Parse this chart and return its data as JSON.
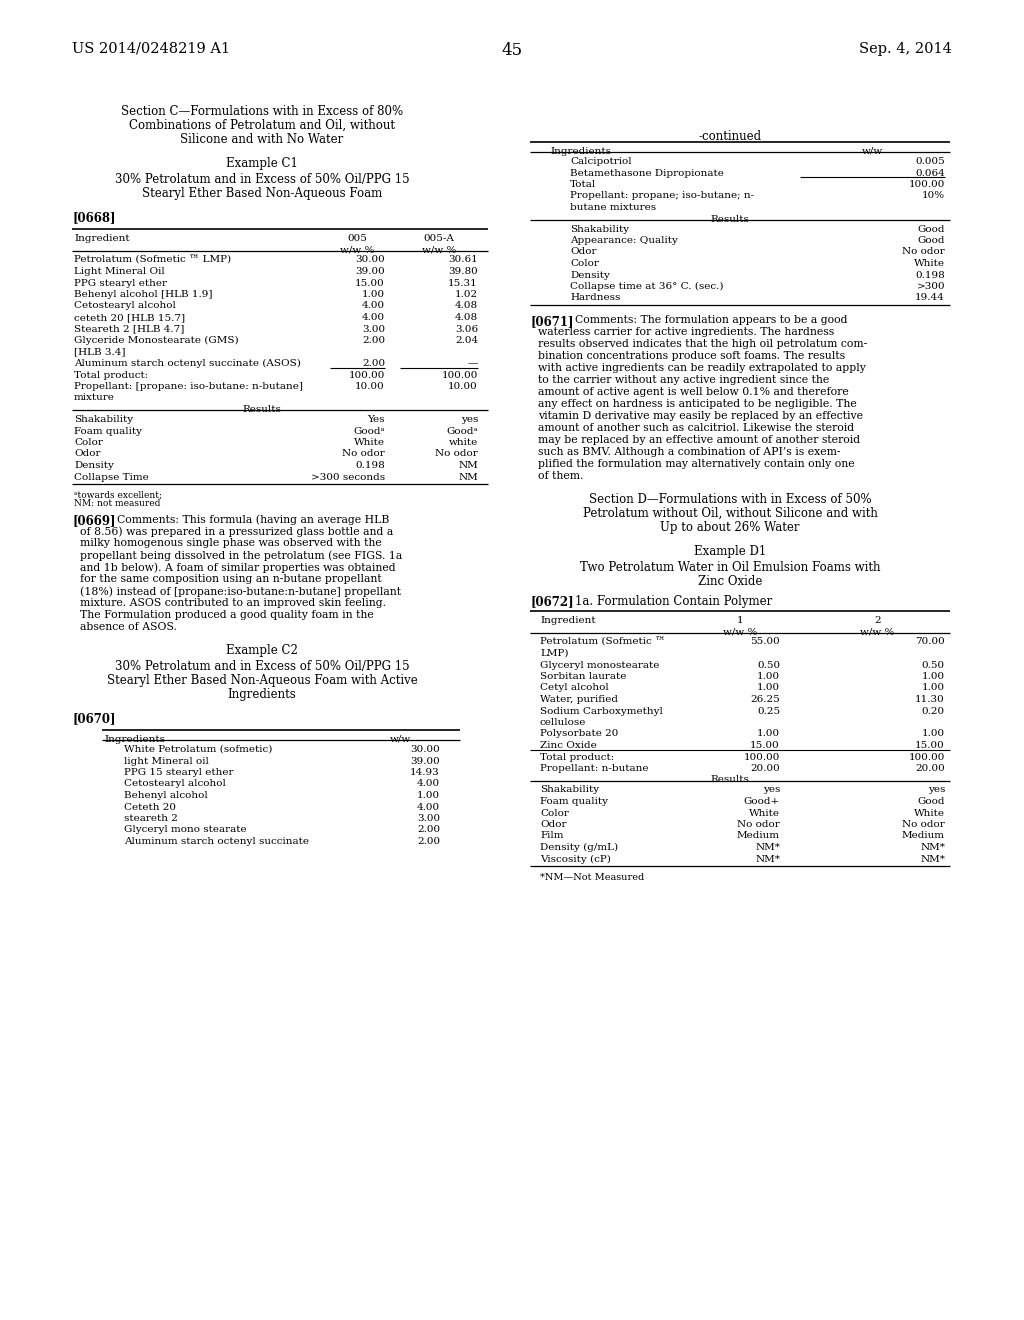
{
  "page_num": "45",
  "header_left": "US 2014/0248219 A1",
  "header_right": "Sep. 4, 2014",
  "bg_color": "#ffffff",
  "left_col": {
    "section_title": [
      "Section C—Formulations with in Excess of 80%",
      "Combinations of Petrolatum and Oil, without",
      "Silicone and with No Water"
    ],
    "example_c1_title": "Example C1",
    "example_c1_subtitle": [
      "30% Petrolatum and in Excess of 50% Oil/PPG 15",
      "Stearyl Ether Based Non-Aqueous Foam"
    ],
    "para_0668": "[0668]",
    "table1_rows": [
      [
        "Petrolatum (Sofmetic ™ LMP)",
        "30.00",
        "30.61"
      ],
      [
        "Light Mineral Oil",
        "39.00",
        "39.80"
      ],
      [
        "PPG stearyl ether",
        "15.00",
        "15.31"
      ],
      [
        "Behenyl alcohol [HLB 1.9]",
        "1.00",
        "1.02"
      ],
      [
        "Cetostearyl alcohol",
        "4.00",
        "4.08"
      ],
      [
        "ceteth 20 [HLB 15.7]",
        "4.00",
        "4.08"
      ],
      [
        "Steareth 2 [HLB 4.7]",
        "3.00",
        "3.06"
      ],
      [
        "Glyceride Monostearate (GMS)",
        "2.00",
        "2.04"
      ],
      [
        "[HLB 3.4]",
        "",
        ""
      ],
      [
        "Aluminum starch octenyl succinate (ASOS)",
        "2.00",
        "—"
      ]
    ],
    "table1_total": [
      [
        "Total product:",
        "100.00",
        "100.00"
      ],
      [
        "Propellant: [propane: iso-butane: n-butane]",
        "10.00",
        "10.00"
      ],
      [
        "mixture",
        "",
        ""
      ]
    ],
    "table1_results": [
      [
        "Shakability",
        "Yes",
        "yes"
      ],
      [
        "Foam quality",
        "Goodᵃ",
        "Goodᵃ"
      ],
      [
        "Color",
        "White",
        "white"
      ],
      [
        "Odor",
        "No odor",
        "No odor"
      ],
      [
        "Density",
        "0.198",
        "NM"
      ],
      [
        "Collapse Time",
        ">300 seconds",
        "NM"
      ]
    ],
    "footnote": [
      "ᵃtowards excellent;",
      "NM: not measured"
    ],
    "para_0669_tag": "[0669]",
    "para_0669_text": [
      "Comments: This formula (having an average HLB",
      "of 8.56) was prepared in a pressurized glass bottle and a",
      "milky homogenous single phase was observed with the",
      "propellant being dissolved in the petrolatum (see FIGS. 1a",
      "and 1b below). A foam of similar properties was obtained",
      "for the same composition using an n-butane propellant",
      "(18%) instead of [propane:iso-butane:n-butane] propellant",
      "mixture. ASOS contributed to an improved skin feeling.",
      "The Formulation produced a good quality foam in the",
      "absence of ASOS."
    ],
    "example_c2_title": "Example C2",
    "example_c2_subtitle": [
      "30% Petrolatum and in Excess of 50% Oil/PPG 15",
      "Stearyl Ether Based Non-Aqueous Foam with Active",
      "Ingredients"
    ],
    "para_0670": "[0670]",
    "table2_rows": [
      [
        "White Petrolatum (sofmetic)",
        "30.00"
      ],
      [
        "light Mineral oil",
        "39.00"
      ],
      [
        "PPG 15 stearyl ether",
        "14.93"
      ],
      [
        "Cetostearyl alcohol",
        "4.00"
      ],
      [
        "Behenyl alcohol",
        "1.00"
      ],
      [
        "Ceteth 20",
        "4.00"
      ],
      [
        "steareth 2",
        "3.00"
      ],
      [
        "Glyceryl mono stearate",
        "2.00"
      ],
      [
        "Aluminum starch octenyl succinate",
        "2.00"
      ]
    ]
  },
  "right_col": {
    "continued_label": "-continued",
    "table3_rows": [
      [
        "Calcipotriol",
        "0.005"
      ],
      [
        "Betamethasone Dipropionate",
        "0.064"
      ]
    ],
    "table3_total": [
      [
        "Total",
        "100.00"
      ],
      [
        "Propellant: propane; iso-butane; n-",
        "10%"
      ],
      [
        "butane mixtures",
        ""
      ]
    ],
    "table3_results": [
      [
        "Shakability",
        "Good"
      ],
      [
        "Appearance: Quality",
        "Good"
      ],
      [
        "Odor",
        "No odor"
      ],
      [
        "Color",
        "White"
      ],
      [
        "Density",
        "0.198"
      ],
      [
        "Collapse time at 36° C. (sec.)",
        ">300"
      ],
      [
        "Hardness",
        "19.44"
      ]
    ],
    "para_0671_tag": "[0671]",
    "para_0671_text": [
      "Comments: The formulation appears to be a good",
      "waterless carrier for active ingredients. The hardness",
      "results observed indicates that the high oil petrolatum com-",
      "bination concentrations produce soft foams. The results",
      "with active ingredients can be readily extrapolated to apply",
      "to the carrier without any active ingredient since the",
      "amount of active agent is well below 0.1% and therefore",
      "any effect on hardness is anticipated to be negligible. The",
      "vitamin D derivative may easily be replaced by an effective",
      "amount of another such as calcitriol. Likewise the steroid",
      "may be replaced by an effective amount of another steroid",
      "such as BMV. Although a combination of API’s is exem-",
      "plified the formulation may alternatively contain only one",
      "of them."
    ],
    "section_d_title": [
      "Section D—Formulations with in Excess of 50%",
      "Petrolatum without Oil, without Silicone and with",
      "Up to about 26% Water"
    ],
    "example_d1_title": "Example D1",
    "example_d1_subtitle": [
      "Two Petrolatum Water in Oil Emulsion Foams with",
      "Zinc Oxide"
    ],
    "para_0672_tag": "[0672]",
    "para_0672_label": "1a. Formulation Contain Polymer",
    "table4_rows": [
      [
        "Petrolatum (Sofmetic ™",
        "55.00",
        "70.00"
      ],
      [
        "LMP)",
        "",
        ""
      ],
      [
        "Glyceryl monostearate",
        "0.50",
        "0.50"
      ],
      [
        "Sorbitan laurate",
        "1.00",
        "1.00"
      ],
      [
        "Cetyl alcohol",
        "1.00",
        "1.00"
      ],
      [
        "Water, purified",
        "26.25",
        "11.30"
      ],
      [
        "Sodium Carboxymethyl",
        "0.25",
        "0.20"
      ],
      [
        "cellulose",
        "",
        ""
      ],
      [
        "Polysorbate 20",
        "1.00",
        "1.00"
      ],
      [
        "Zinc Oxide",
        "15.00",
        "15.00"
      ]
    ],
    "table4_total": [
      [
        "Total product:",
        "100.00",
        "100.00"
      ],
      [
        "Propellant: n-butane",
        "20.00",
        "20.00"
      ]
    ],
    "table4_results": [
      [
        "Shakability",
        "yes",
        "yes"
      ],
      [
        "Foam quality",
        "Good+",
        "Good"
      ],
      [
        "Color",
        "White",
        "White"
      ],
      [
        "Odor",
        "No odor",
        "No odor"
      ],
      [
        "Film",
        "Medium",
        "Medium"
      ],
      [
        "Density (g/mL)",
        "NM*",
        "NM*"
      ],
      [
        "Viscosity (cP)",
        "NM*",
        "NM*"
      ]
    ],
    "footnote4": "*NM—Not Measured"
  }
}
